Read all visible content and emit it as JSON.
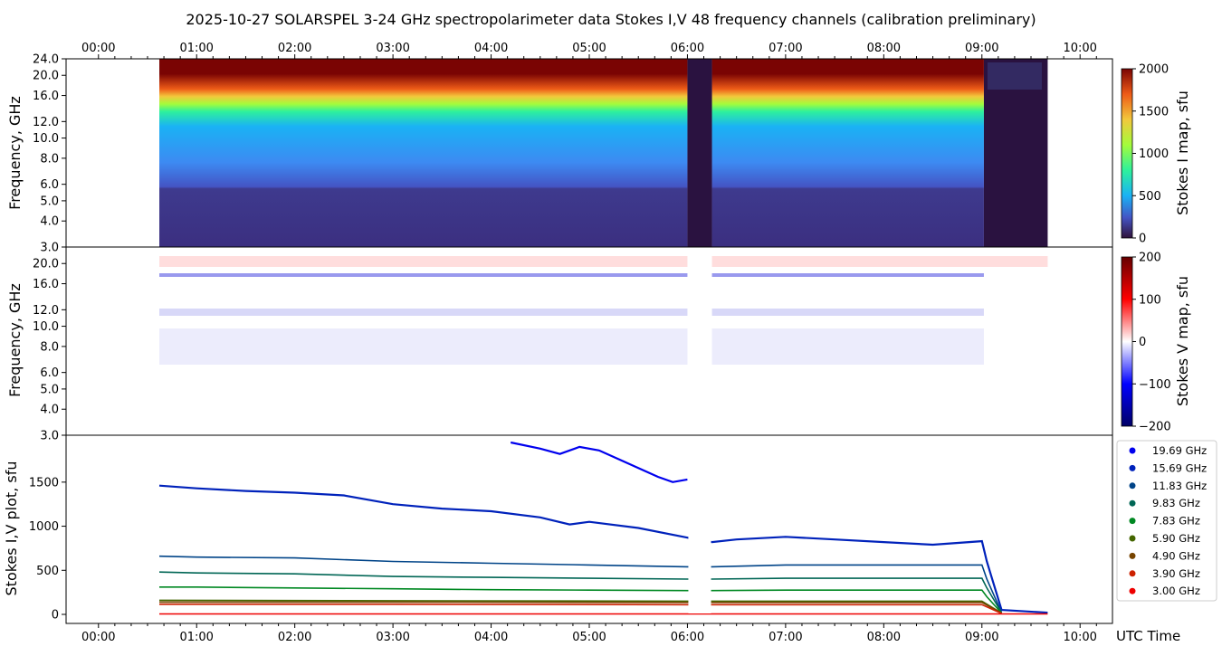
{
  "title": "2025-10-27  SOLARSPEL  3-24 GHz spectropolarimeter data   Stokes I,V   48 frequency channels   (calibration preliminary)",
  "time_axis": {
    "ticks": [
      "00:00",
      "01:00",
      "02:00",
      "03:00",
      "04:00",
      "05:00",
      "06:00",
      "07:00",
      "08:00",
      "09:00",
      "10:00"
    ],
    "label": "UTC Time",
    "range_hours": [
      -0.33,
      10.33
    ]
  },
  "panels": {
    "stokes_i_map": {
      "ylabel": "Frequency, GHz",
      "yticks": [
        "24.0",
        "20.0",
        "16.0",
        "12.0",
        "10.0",
        "8.0",
        "6.0",
        "5.0",
        "4.0",
        "3.0"
      ],
      "colorbar_label": "Stokes I map, sfu",
      "colorbar_ticks": [
        "2000",
        "1500",
        "1000",
        "500",
        "0"
      ]
    },
    "stokes_v_map": {
      "ylabel": "Frequency, GHz",
      "yticks": [
        "20.0",
        "16.0",
        "12.0",
        "10.0",
        "8.0",
        "6.0",
        "5.0",
        "4.0",
        "3.0"
      ],
      "colorbar_label": "Stokes V map, sfu",
      "colorbar_ticks": [
        "200",
        "100",
        "0",
        "−100",
        "−200"
      ]
    },
    "line_plot": {
      "ylabel": "Stokes I,V plot, sfu",
      "yticks": [
        "1500",
        "1000",
        "500",
        "0"
      ]
    }
  },
  "legend": [
    {
      "label": "19.69 GHz",
      "color": "#0000ee"
    },
    {
      "label": "15.69 GHz",
      "color": "#0022bb"
    },
    {
      "label": "11.83 GHz",
      "color": "#004488"
    },
    {
      "label": "9.83 GHz",
      "color": "#006655"
    },
    {
      "label": "7.83 GHz",
      "color": "#008822"
    },
    {
      "label": "5.90 GHz",
      "color": "#446600"
    },
    {
      "label": "4.90 GHz",
      "color": "#774400"
    },
    {
      "label": "3.90 GHz",
      "color": "#cc2200"
    },
    {
      "label": "3.00 GHz",
      "color": "#ee0000"
    }
  ],
  "chart_data": [
    {
      "type": "heatmap",
      "name": "Stokes I map",
      "x_unit": "UTC hours",
      "y_unit": "GHz",
      "ylim": [
        3.0,
        24.0
      ],
      "color_range_sfu": [
        0,
        2000
      ],
      "data_time_range": [
        0.62,
        9.67
      ],
      "gap_intervals": [
        [
          6.0,
          6.25
        ],
        [
          9.02,
          9.67
        ]
      ]
    },
    {
      "type": "heatmap",
      "name": "Stokes V map",
      "x_unit": "UTC hours",
      "y_unit": "GHz",
      "ylim": [
        3.0,
        24.0
      ],
      "color_range_sfu": [
        -200,
        200
      ],
      "data_time_range": [
        0.62,
        9.67
      ]
    },
    {
      "type": "line",
      "name": "Stokes I,V plot",
      "ylim": [
        -100,
        1950
      ],
      "series": [
        {
          "name": "19.69 GHz",
          "x": [
            4.2,
            4.5,
            4.7,
            4.9,
            5.1,
            5.3,
            5.5,
            5.7,
            5.85,
            6.0
          ],
          "y": [
            1950,
            1880,
            1820,
            1900,
            1860,
            1760,
            1660,
            1560,
            1500,
            1530
          ]
        },
        {
          "name": "15.69 GHz",
          "x": [
            0.62,
            1.0,
            1.5,
            2.0,
            2.5,
            3.0,
            3.5,
            4.0,
            4.5,
            4.8,
            5.0,
            5.5,
            6.0,
            6.25,
            6.5,
            7.0,
            7.5,
            8.0,
            8.5,
            9.0,
            9.05,
            9.2,
            9.67
          ],
          "y": [
            1460,
            1430,
            1400,
            1380,
            1350,
            1250,
            1200,
            1170,
            1100,
            1020,
            1050,
            980,
            870,
            820,
            850,
            880,
            850,
            820,
            790,
            830,
            600,
            50,
            20
          ]
        },
        {
          "name": "11.83 GHz",
          "x": [
            0.62,
            1.0,
            2.0,
            3.0,
            4.0,
            5.0,
            6.0,
            6.25,
            7.0,
            8.0,
            9.0,
            9.05,
            9.2
          ],
          "y": [
            660,
            650,
            640,
            600,
            580,
            560,
            540,
            540,
            560,
            560,
            560,
            400,
            20
          ]
        },
        {
          "name": "9.83 GHz",
          "x": [
            0.62,
            1.0,
            2.0,
            3.0,
            4.0,
            5.0,
            6.0,
            6.25,
            7.0,
            8.0,
            9.0,
            9.05,
            9.2
          ],
          "y": [
            480,
            470,
            460,
            430,
            420,
            410,
            400,
            400,
            410,
            410,
            410,
            300,
            20
          ]
        },
        {
          "name": "7.83 GHz",
          "x": [
            0.62,
            1.0,
            2.0,
            3.0,
            4.0,
            5.0,
            6.0,
            6.25,
            7.0,
            8.0,
            9.0,
            9.05,
            9.2
          ],
          "y": [
            310,
            310,
            300,
            290,
            280,
            275,
            270,
            270,
            275,
            275,
            275,
            200,
            15
          ]
        },
        {
          "name": "5.90 GHz",
          "x": [
            0.62,
            3.0,
            6.0,
            6.25,
            9.0,
            9.2
          ],
          "y": [
            160,
            155,
            150,
            150,
            150,
            15
          ]
        },
        {
          "name": "4.90 GHz",
          "x": [
            0.62,
            3.0,
            6.0,
            6.25,
            9.0,
            9.2
          ],
          "y": [
            140,
            140,
            135,
            135,
            135,
            15
          ]
        },
        {
          "name": "3.90 GHz",
          "x": [
            0.62,
            3.0,
            6.0,
            6.25,
            9.0,
            9.2
          ],
          "y": [
            115,
            115,
            110,
            110,
            110,
            10
          ]
        },
        {
          "name": "3.00 GHz",
          "x": [
            0.62,
            9.67
          ],
          "y": [
            5,
            5
          ]
        }
      ]
    }
  ]
}
